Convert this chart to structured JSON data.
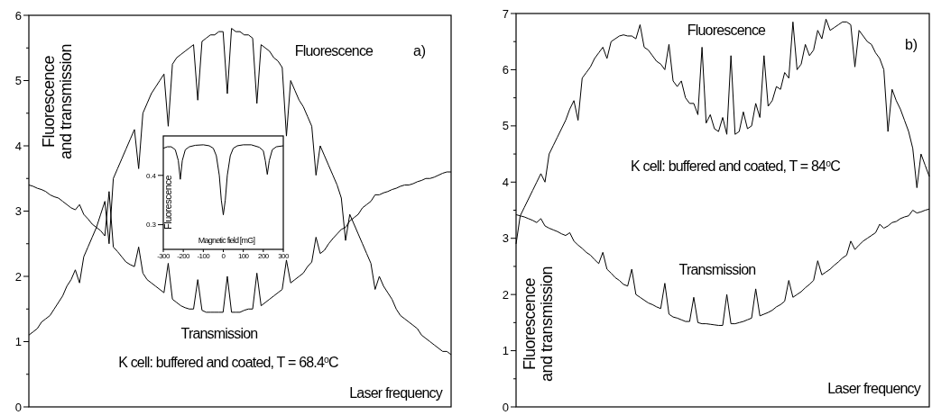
{
  "chart_data": [
    {
      "type": "line",
      "title": "a)",
      "xlabel": "Laser frequency",
      "ylabel": "Fluorescence and transmission",
      "annotations": [
        "K cell: buffered and coated, T = 68.4$^{o}$C"
      ],
      "categories": [
        null,
        null,
        null,
        null,
        null,
        null,
        null,
        null,
        null,
        null,
        null,
        null,
        null,
        null,
        null,
        null,
        null,
        null,
        null,
        null,
        null,
        null,
        null,
        null,
        null,
        null,
        null,
        null,
        null,
        null,
        null,
        null,
        null,
        null,
        null,
        null,
        null,
        null,
        null,
        null,
        null,
        null,
        null,
        null,
        null,
        null,
        null,
        null,
        null,
        null,
        null,
        null,
        null,
        null,
        null,
        null,
        null,
        null,
        null,
        null,
        null,
        null,
        null,
        null,
        null,
        null,
        null,
        null,
        null,
        null,
        null,
        null,
        null,
        null,
        null,
        null,
        null,
        null,
        null,
        null,
        null,
        null,
        null,
        null,
        null,
        null,
        null,
        null,
        null,
        null,
        null,
        null,
        null,
        null,
        null,
        null,
        null,
        null,
        null,
        null,
        null
      ],
      "ylim": [
        0,
        6
      ],
      "yticks": [
        0,
        {
          "value": 0.5,
          "label": null
        },
        1,
        {
          "value": 1.5,
          "label": null
        },
        2,
        {
          "value": 2.5,
          "label": null
        },
        3,
        {
          "value": 3.5,
          "label": null
        },
        4,
        {
          "value": 4.5,
          "label": null
        },
        5,
        {
          "value": 5.5,
          "label": null
        },
        6
      ],
      "tick_labels": "y",
      "series": [
        {
          "name": "Fluorescence",
          "color": "#000000",
          "values": [
            1.1,
            1.15,
            1.2,
            1.3,
            1.35,
            1.4,
            1.5,
            1.6,
            1.7,
            1.85,
            1.95,
            2.1,
            1.9,
            2.3,
            2.45,
            2.6,
            2.75,
            2.95,
            3.15,
            2.5,
            3.5,
            3.65,
            3.8,
            3.95,
            4.1,
            4.25,
            3.65,
            4.5,
            4.65,
            4.8,
            4.9,
            5.0,
            5.1,
            4.3,
            5.25,
            5.35,
            5.4,
            5.45,
            5.5,
            5.55,
            4.7,
            5.6,
            5.65,
            5.7,
            5.7,
            5.75,
            5.75,
            4.8,
            5.8,
            5.75,
            5.75,
            5.7,
            5.7,
            5.65,
            4.65,
            5.55,
            5.5,
            5.45,
            5.35,
            5.3,
            5.2,
            4.15,
            5.0,
            4.85,
            4.7,
            4.6,
            4.45,
            4.3,
            3.55,
            4.0,
            3.85,
            3.7,
            3.55,
            3.4,
            3.2,
            2.55,
            2.95,
            2.8,
            2.65,
            2.5,
            2.35,
            2.2,
            1.8,
            2.0,
            1.85,
            1.75,
            1.65,
            1.5,
            1.4,
            1.35,
            1.3,
            1.25,
            1.2,
            1.1,
            1.05,
            1.0,
            0.95,
            0.9,
            0.85,
            0.85,
            0.8
          ]
        },
        {
          "name": "Transmission",
          "color": "#000000",
          "values": [
            3.4,
            3.38,
            3.35,
            3.33,
            3.3,
            3.25,
            3.22,
            3.2,
            3.15,
            3.1,
            3.05,
            3.02,
            3.1,
            2.95,
            2.88,
            2.8,
            2.75,
            2.7,
            2.62,
            3.3,
            2.45,
            2.38,
            2.3,
            2.22,
            2.18,
            2.15,
            2.45,
            2.05,
            1.95,
            1.9,
            1.85,
            1.8,
            1.75,
            2.2,
            1.65,
            1.6,
            1.55,
            1.52,
            1.5,
            1.5,
            1.95,
            1.48,
            1.45,
            1.45,
            1.45,
            1.45,
            1.45,
            2.0,
            1.45,
            1.45,
            1.45,
            1.48,
            1.5,
            1.5,
            2.05,
            1.55,
            1.6,
            1.65,
            1.7,
            1.75,
            1.8,
            2.25,
            1.9,
            1.95,
            2.0,
            2.05,
            2.15,
            2.22,
            2.6,
            2.35,
            2.4,
            2.5,
            2.58,
            2.65,
            2.72,
            2.75,
            2.85,
            2.9,
            2.95,
            3.05,
            3.1,
            3.15,
            3.25,
            3.25,
            3.28,
            3.3,
            3.33,
            3.35,
            3.38,
            3.4,
            3.4,
            3.42,
            3.45,
            3.47,
            3.5,
            3.5,
            3.52,
            3.55,
            3.58,
            3.6,
            3.6
          ]
        }
      ]
    },
    {
      "type": "line",
      "xlabel": "Magnetic field [mG]",
      "ylabel": "Fluorescence",
      "xlim": [
        -300,
        300
      ],
      "xticks": [
        -300,
        -200,
        -100,
        0,
        100,
        200,
        300
      ],
      "ylim": [
        0.25,
        0.48
      ],
      "yticks": [
        0.3,
        0.4
      ],
      "series": [
        {
          "color": "#000000",
          "x": [
            -300,
            -280,
            -260,
            -240,
            -225,
            -215,
            -205,
            -190,
            -170,
            -140,
            -100,
            -70,
            -50,
            -35,
            -20,
            -10,
            0,
            10,
            20,
            35,
            50,
            70,
            100,
            140,
            180,
            200,
            210,
            220,
            230,
            245,
            265,
            300
          ],
          "values": [
            0.455,
            0.458,
            0.458,
            0.452,
            0.43,
            0.392,
            0.43,
            0.452,
            0.458,
            0.461,
            0.462,
            0.46,
            0.455,
            0.44,
            0.4,
            0.35,
            0.32,
            0.35,
            0.4,
            0.44,
            0.455,
            0.46,
            0.462,
            0.462,
            0.457,
            0.45,
            0.43,
            0.402,
            0.43,
            0.452,
            0.458,
            0.46
          ]
        }
      ]
    },
    {
      "type": "line",
      "title": "b)",
      "xlabel": "Laser frequency",
      "ylabel": "Fluorescence and transmission",
      "annotations": [
        "K cell: buffered and coated, T = 84$^{o}$C"
      ],
      "categories": [
        null,
        null,
        null,
        null,
        null,
        null,
        null,
        null,
        null,
        null,
        null,
        null,
        null,
        null,
        null,
        null,
        null,
        null,
        null,
        null,
        null,
        null,
        null,
        null,
        null,
        null,
        null,
        null,
        null,
        null,
        null,
        null,
        null,
        null,
        null,
        null,
        null,
        null,
        null,
        null,
        null,
        null,
        null,
        null,
        null,
        null,
        null,
        null,
        null,
        null,
        null,
        null,
        null,
        null,
        null,
        null,
        null,
        null,
        null,
        null,
        null,
        null,
        null,
        null,
        null,
        null,
        null,
        null,
        null,
        null,
        null,
        null,
        null,
        null,
        null,
        null,
        null,
        null,
        null,
        null,
        null,
        null,
        null,
        null,
        null,
        null,
        null,
        null,
        null,
        null,
        null,
        null,
        null,
        null,
        null,
        null,
        null,
        null,
        null,
        null,
        null
      ],
      "ylim": [
        0,
        7
      ],
      "yticks": [
        0,
        {
          "value": 0.5,
          "label": null
        },
        1,
        {
          "value": 1.5,
          "label": null
        },
        2,
        {
          "value": 2.5,
          "label": null
        },
        3,
        {
          "value": 3.5,
          "label": null
        },
        4,
        {
          "value": 4.5,
          "label": null
        },
        5,
        {
          "value": 5.5,
          "label": null
        },
        6,
        {
          "value": 6.5,
          "label": null
        },
        7
      ],
      "tick_labels": "y",
      "series": [
        {
          "name": "Fluorescence",
          "color": "#000000",
          "values": [
            2.9,
            3.4,
            3.55,
            3.7,
            3.85,
            4.0,
            4.15,
            4.0,
            4.5,
            4.65,
            4.8,
            4.95,
            5.1,
            5.3,
            5.45,
            5.1,
            5.85,
            5.95,
            6.05,
            6.2,
            6.3,
            6.4,
            6.2,
            6.5,
            6.55,
            6.6,
            6.62,
            6.6,
            6.6,
            6.55,
            6.8,
            6.4,
            6.35,
            6.25,
            6.15,
            6.1,
            6.0,
            6.45,
            5.8,
            5.7,
            5.8,
            5.5,
            5.4,
            5.4,
            5.2,
            6.4,
            5.05,
            5.2,
            4.95,
            4.9,
            5.15,
            4.85,
            6.25,
            4.85,
            4.9,
            5.25,
            4.95,
            5.0,
            5.4,
            5.15,
            6.25,
            5.35,
            5.45,
            5.7,
            5.65,
            5.95,
            5.85,
            6.85,
            6.0,
            6.1,
            6.45,
            6.25,
            6.35,
            6.7,
            6.55,
            6.9,
            6.7,
            6.75,
            6.8,
            6.85,
            6.85,
            6.8,
            6.05,
            6.7,
            6.6,
            6.5,
            6.45,
            6.3,
            6.2,
            6.0,
            4.9,
            5.65,
            5.45,
            5.3,
            5.1,
            4.9,
            4.6,
            3.9,
            4.5,
            4.3,
            4.1
          ]
        },
        {
          "name": "Transmission",
          "color": "#000000",
          "values": [
            3.42,
            3.4,
            3.38,
            3.35,
            3.32,
            3.28,
            3.35,
            3.22,
            3.18,
            3.15,
            3.12,
            3.08,
            3.05,
            3.1,
            2.95,
            2.88,
            2.82,
            2.75,
            2.7,
            2.62,
            2.55,
            2.75,
            2.45,
            2.38,
            2.3,
            2.25,
            2.18,
            2.15,
            2.45,
            2.0,
            1.95,
            1.9,
            1.85,
            1.82,
            1.78,
            1.75,
            2.2,
            1.65,
            1.6,
            1.58,
            1.55,
            1.52,
            1.52,
            1.95,
            1.5,
            1.48,
            1.48,
            1.47,
            1.46,
            1.45,
            1.45,
            2.0,
            1.48,
            1.48,
            1.5,
            1.52,
            1.55,
            1.58,
            2.1,
            1.62,
            1.65,
            1.68,
            1.72,
            1.78,
            1.82,
            1.88,
            2.25,
            1.95,
            2.0,
            2.05,
            2.12,
            2.18,
            2.25,
            2.6,
            2.35,
            2.4,
            2.45,
            2.52,
            2.58,
            2.65,
            2.7,
            2.95,
            2.8,
            2.88,
            2.95,
            3.0,
            3.05,
            3.1,
            3.25,
            3.18,
            3.22,
            3.28,
            3.3,
            3.35,
            3.38,
            3.4,
            3.5,
            3.45,
            3.47,
            3.5,
            3.52
          ]
        }
      ]
    }
  ]
}
